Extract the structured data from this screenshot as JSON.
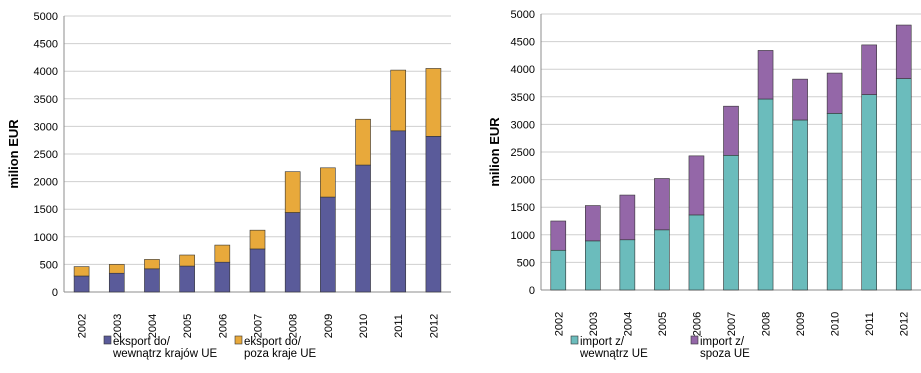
{
  "chart_data": [
    {
      "type": "bar",
      "stacked": true,
      "ylabel": "milion EUR",
      "ylim": [
        0,
        5000
      ],
      "yticks": [
        0,
        500,
        1000,
        1500,
        2000,
        2500,
        3000,
        3500,
        4000,
        4500,
        5000
      ],
      "grid": true,
      "legend_position": "bottom",
      "categories": [
        "2002",
        "2003",
        "2004",
        "2005",
        "2006",
        "2007",
        "2008",
        "2009",
        "2010",
        "2011",
        "2012"
      ],
      "series": [
        {
          "name": [
            "eksport do/",
            "wewnątrz krajów UE"
          ],
          "color": "#5a5b9a",
          "values": [
            290,
            340,
            420,
            470,
            540,
            780,
            1440,
            1720,
            2300,
            2920,
            2820
          ]
        },
        {
          "name": [
            "eksport do/",
            "poza kraje UE"
          ],
          "color": "#e8a93b",
          "values": [
            170,
            160,
            170,
            200,
            310,
            340,
            740,
            530,
            830,
            1100,
            1230
          ]
        }
      ]
    },
    {
      "type": "bar",
      "stacked": true,
      "ylabel": "milion EUR",
      "ylim": [
        0,
        5000
      ],
      "yticks": [
        0,
        500,
        1000,
        1500,
        2000,
        2500,
        3000,
        3500,
        4000,
        4500,
        5000
      ],
      "grid": true,
      "legend_position": "bottom",
      "categories": [
        "2002",
        "2003",
        "2004",
        "2005",
        "2006",
        "2007",
        "2008",
        "2009",
        "2010",
        "2011",
        "2012"
      ],
      "series": [
        {
          "name": [
            "import z/",
            "wewnątrz UE"
          ],
          "color": "#6bbcbc",
          "values": [
            720,
            890,
            910,
            1090,
            1360,
            2440,
            3460,
            3080,
            3200,
            3540,
            3830
          ]
        },
        {
          "name": [
            "import z/",
            "spoza UE"
          ],
          "color": "#9467a8",
          "values": [
            530,
            640,
            810,
            930,
            1070,
            890,
            880,
            740,
            730,
            900,
            970
          ]
        }
      ]
    }
  ]
}
